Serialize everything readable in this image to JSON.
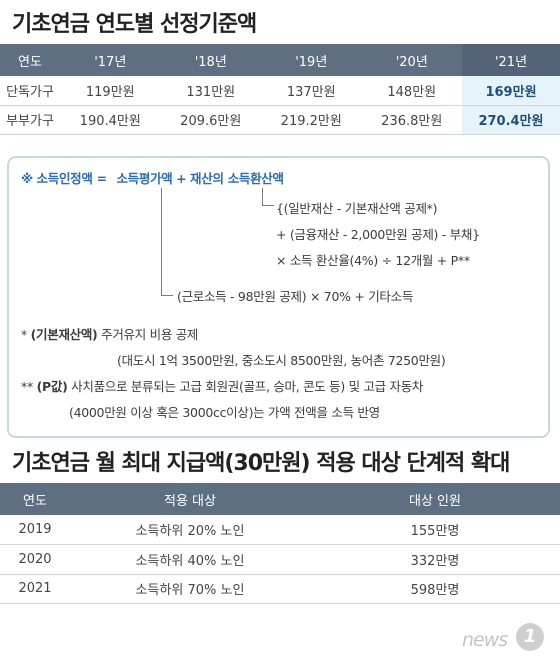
{
  "title1": "기초연금 연도별 선정기준액",
  "table1": {
    "headers": [
      "연도",
      "'17년",
      "'18년",
      "'19년",
      "'20년",
      "'21년"
    ],
    "rows": [
      {
        "label": "단독가구",
        "values": [
          "119만원",
          "131만원",
          "137만원",
          "148만원",
          "169만원"
        ]
      },
      {
        "label": "부부가구",
        "values": [
          "190.4만원",
          "209.6만원",
          "219.2만원",
          "236.8만원",
          "270.4만원"
        ]
      }
    ]
  },
  "formula": {
    "mark": "※",
    "lhs": "소득인정액 =",
    "term1": "소득평가액",
    "plus": "+",
    "term2": "재산의 소득환산액",
    "line1": "{(일반재산 - 기본재산액 공제*)",
    "line2": "+ (금융재산 - 2,000만원 공제) - 부채}",
    "line3": "× 소득 환산율(4%) ÷ 12개월 + P**",
    "line4": "(근로소득 - 98만원 공제) × 70% + 기타소득"
  },
  "notes": {
    "n1_mark": "*",
    "n1_key": "(기본재산액)",
    "n1_text": "주거유지 비용 공제",
    "n1_sub": "(대도시 1억 3500만원, 중소도시 8500만원, 농어촌 7250만원)",
    "n2_mark": "**",
    "n2_key": "(P값)",
    "n2_text": "사치품으로 분류되는 고급 회원권(골프, 승마, 콘도 등) 및 고급 자동차",
    "n2_sub": "(4000만원 이상 혹은 3000cc이상)는 가액 전액을 소득 반영"
  },
  "title2": "기초연금 월 최대 지급액(30만원) 적용 대상 단계적 확대",
  "table2": {
    "headers": [
      "연도",
      "적용 대상",
      "대상 인원"
    ],
    "rows": [
      [
        "2019",
        "소득하위 20% 노인",
        "155만명"
      ],
      [
        "2020",
        "소득하위 40% 노인",
        "332만명"
      ],
      [
        "2021",
        "소득하위 70% 노인",
        "598만명"
      ]
    ]
  },
  "logo": {
    "word": "news",
    "mark": "1"
  },
  "colors": {
    "header": "#5e6f82",
    "highlight_bg": "#e7f3fb",
    "highlight_text": "#1f4f7c",
    "formula_blue": "#2b6cb0"
  }
}
